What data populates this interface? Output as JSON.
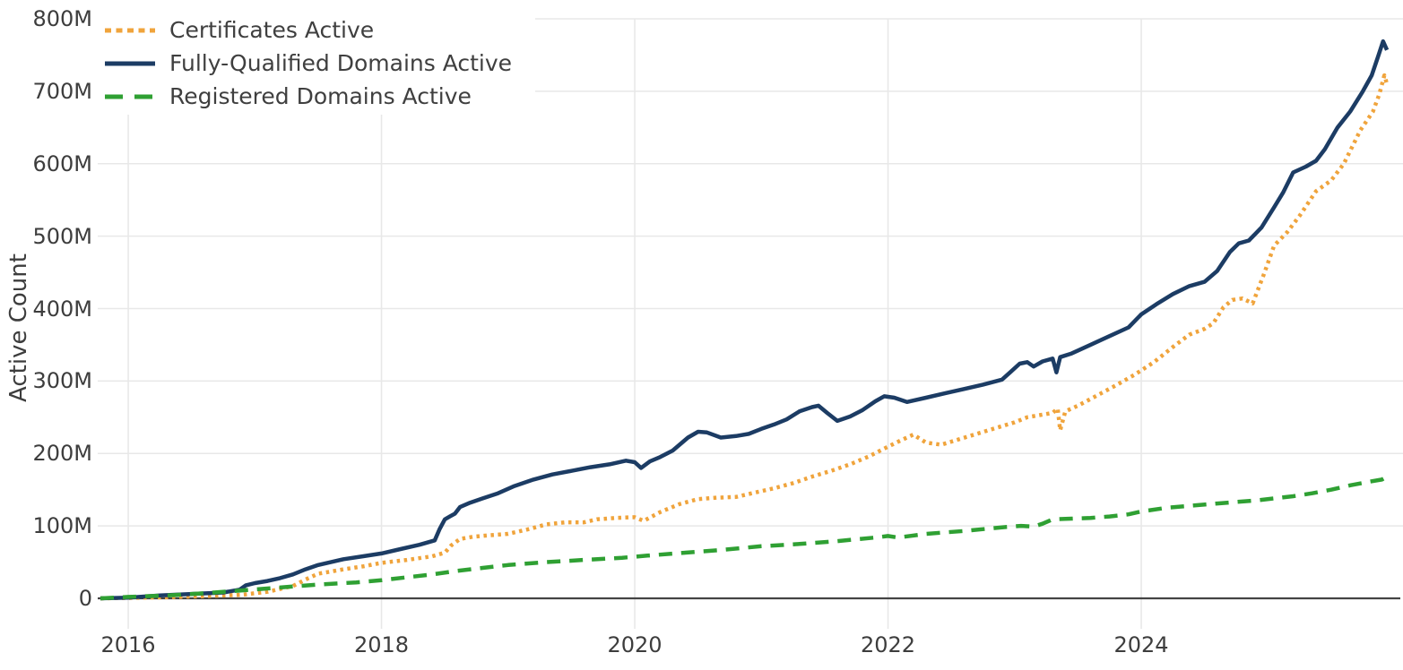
{
  "chart_data": {
    "type": "line",
    "title": "",
    "xlabel": "",
    "ylabel": "Active Count",
    "units": "millions",
    "xlim": [
      2015.759,
      2026.067
    ],
    "ylim": [
      0,
      800
    ],
    "grid": true,
    "legend_position": "top-left",
    "background_color": "#ffffff",
    "grid_color": "#e8e8e8",
    "axis_color": "#444444",
    "text_color": "#3d3d3d",
    "x_ticks": [
      {
        "v": 2016,
        "label": "2016"
      },
      {
        "v": 2018,
        "label": "2018"
      },
      {
        "v": 2020,
        "label": "2020"
      },
      {
        "v": 2022,
        "label": "2022"
      },
      {
        "v": 2024,
        "label": "2024"
      }
    ],
    "y_ticks": [
      {
        "v": 0,
        "label": "0"
      },
      {
        "v": 100,
        "label": "100M"
      },
      {
        "v": 200,
        "label": "200M"
      },
      {
        "v": 300,
        "label": "300M"
      },
      {
        "v": 400,
        "label": "400M"
      },
      {
        "v": 500,
        "label": "500M"
      },
      {
        "v": 600,
        "label": "600M"
      },
      {
        "v": 700,
        "label": "700M"
      },
      {
        "v": 800,
        "label": "800M"
      }
    ],
    "series": [
      {
        "name": "Certificates Active",
        "color": "#f0a43c",
        "dash": "dot",
        "width": 4.5,
        "points": [
          [
            2015.78,
            0
          ],
          [
            2016.0,
            0.5
          ],
          [
            2016.3,
            1.5
          ],
          [
            2016.6,
            3
          ],
          [
            2016.9,
            5
          ],
          [
            2017.0,
            7
          ],
          [
            2017.1,
            9
          ],
          [
            2017.2,
            13
          ],
          [
            2017.3,
            17
          ],
          [
            2017.4,
            26
          ],
          [
            2017.5,
            34
          ],
          [
            2017.6,
            37
          ],
          [
            2017.7,
            40
          ],
          [
            2017.85,
            44
          ],
          [
            2018.0,
            49
          ],
          [
            2018.2,
            53
          ],
          [
            2018.4,
            58
          ],
          [
            2018.5,
            63
          ],
          [
            2018.55,
            73
          ],
          [
            2018.62,
            82
          ],
          [
            2018.72,
            85
          ],
          [
            2018.85,
            87
          ],
          [
            2019.0,
            89
          ],
          [
            2019.15,
            95
          ],
          [
            2019.3,
            102
          ],
          [
            2019.45,
            105
          ],
          [
            2019.6,
            105
          ],
          [
            2019.7,
            109
          ],
          [
            2019.85,
            111
          ],
          [
            2020.0,
            112
          ],
          [
            2020.07,
            107
          ],
          [
            2020.2,
            119
          ],
          [
            2020.35,
            130
          ],
          [
            2020.5,
            137
          ],
          [
            2020.65,
            139
          ],
          [
            2020.8,
            140
          ],
          [
            2020.95,
            146
          ],
          [
            2021.1,
            152
          ],
          [
            2021.25,
            159
          ],
          [
            2021.4,
            168
          ],
          [
            2021.55,
            176
          ],
          [
            2021.7,
            185
          ],
          [
            2021.85,
            196
          ],
          [
            2021.95,
            205
          ],
          [
            2022.1,
            218
          ],
          [
            2022.2,
            226
          ],
          [
            2022.3,
            215
          ],
          [
            2022.42,
            212
          ],
          [
            2022.55,
            219
          ],
          [
            2022.7,
            227
          ],
          [
            2022.85,
            235
          ],
          [
            2023.0,
            243
          ],
          [
            2023.1,
            250
          ],
          [
            2023.2,
            253
          ],
          [
            2023.3,
            256
          ],
          [
            2023.34,
            262
          ],
          [
            2023.36,
            232
          ],
          [
            2023.4,
            258
          ],
          [
            2023.5,
            266
          ],
          [
            2023.65,
            280
          ],
          [
            2023.8,
            294
          ],
          [
            2023.95,
            309
          ],
          [
            2024.1,
            326
          ],
          [
            2024.25,
            347
          ],
          [
            2024.38,
            364
          ],
          [
            2024.5,
            372
          ],
          [
            2024.57,
            380
          ],
          [
            2024.65,
            402
          ],
          [
            2024.72,
            412
          ],
          [
            2024.8,
            414
          ],
          [
            2024.88,
            407
          ],
          [
            2024.97,
            448
          ],
          [
            2025.05,
            487
          ],
          [
            2025.15,
            505
          ],
          [
            2025.25,
            528
          ],
          [
            2025.38,
            562
          ],
          [
            2025.5,
            577
          ],
          [
            2025.6,
            600
          ],
          [
            2025.73,
            646
          ],
          [
            2025.83,
            672
          ],
          [
            2025.88,
            696
          ],
          [
            2025.92,
            722
          ],
          [
            2025.94,
            710
          ]
        ]
      },
      {
        "name": "Fully-Qualified Domains Active",
        "color": "#1c3c64",
        "dash": "solid",
        "width": 4.5,
        "points": [
          [
            2015.78,
            0
          ],
          [
            2016.0,
            1
          ],
          [
            2016.25,
            4
          ],
          [
            2016.5,
            6
          ],
          [
            2016.75,
            8
          ],
          [
            2016.88,
            12
          ],
          [
            2016.93,
            18
          ],
          [
            2017.0,
            21
          ],
          [
            2017.1,
            24
          ],
          [
            2017.2,
            28
          ],
          [
            2017.3,
            33
          ],
          [
            2017.4,
            40
          ],
          [
            2017.5,
            46
          ],
          [
            2017.6,
            50
          ],
          [
            2017.7,
            54
          ],
          [
            2017.85,
            58
          ],
          [
            2018.0,
            62
          ],
          [
            2018.15,
            68
          ],
          [
            2018.3,
            74
          ],
          [
            2018.42,
            80
          ],
          [
            2018.46,
            96
          ],
          [
            2018.5,
            109
          ],
          [
            2018.54,
            113
          ],
          [
            2018.58,
            117
          ],
          [
            2018.62,
            126
          ],
          [
            2018.7,
            132
          ],
          [
            2018.8,
            138
          ],
          [
            2018.92,
            145
          ],
          [
            2019.05,
            155
          ],
          [
            2019.2,
            164
          ],
          [
            2019.35,
            171
          ],
          [
            2019.5,
            176
          ],
          [
            2019.65,
            181
          ],
          [
            2019.8,
            185
          ],
          [
            2019.93,
            190
          ],
          [
            2020.0,
            188
          ],
          [
            2020.05,
            180
          ],
          [
            2020.12,
            189
          ],
          [
            2020.2,
            195
          ],
          [
            2020.3,
            204
          ],
          [
            2020.42,
            222
          ],
          [
            2020.5,
            230
          ],
          [
            2020.57,
            229
          ],
          [
            2020.68,
            222
          ],
          [
            2020.8,
            224
          ],
          [
            2020.9,
            227
          ],
          [
            2021.0,
            234
          ],
          [
            2021.1,
            240
          ],
          [
            2021.2,
            247
          ],
          [
            2021.3,
            258
          ],
          [
            2021.4,
            264
          ],
          [
            2021.45,
            266
          ],
          [
            2021.52,
            256
          ],
          [
            2021.6,
            245
          ],
          [
            2021.7,
            251
          ],
          [
            2021.8,
            260
          ],
          [
            2021.9,
            272
          ],
          [
            2021.97,
            279
          ],
          [
            2022.05,
            277
          ],
          [
            2022.15,
            271
          ],
          [
            2022.3,
            277
          ],
          [
            2022.45,
            283
          ],
          [
            2022.6,
            289
          ],
          [
            2022.75,
            295
          ],
          [
            2022.9,
            302
          ],
          [
            2022.97,
            313
          ],
          [
            2023.04,
            324
          ],
          [
            2023.1,
            326
          ],
          [
            2023.15,
            320
          ],
          [
            2023.22,
            327
          ],
          [
            2023.3,
            331
          ],
          [
            2023.33,
            312
          ],
          [
            2023.36,
            333
          ],
          [
            2023.45,
            338
          ],
          [
            2023.6,
            350
          ],
          [
            2023.75,
            362
          ],
          [
            2023.9,
            374
          ],
          [
            2024.0,
            392
          ],
          [
            2024.12,
            406
          ],
          [
            2024.25,
            420
          ],
          [
            2024.38,
            431
          ],
          [
            2024.5,
            437
          ],
          [
            2024.6,
            452
          ],
          [
            2024.7,
            478
          ],
          [
            2024.77,
            490
          ],
          [
            2024.85,
            494
          ],
          [
            2024.95,
            512
          ],
          [
            2025.05,
            540
          ],
          [
            2025.12,
            560
          ],
          [
            2025.2,
            588
          ],
          [
            2025.3,
            596
          ],
          [
            2025.38,
            604
          ],
          [
            2025.45,
            620
          ],
          [
            2025.55,
            650
          ],
          [
            2025.65,
            672
          ],
          [
            2025.75,
            700
          ],
          [
            2025.82,
            722
          ],
          [
            2025.87,
            748
          ],
          [
            2025.91,
            769
          ],
          [
            2025.94,
            757
          ]
        ]
      },
      {
        "name": "Registered Domains Active",
        "color": "#2fa033",
        "dash": "dash",
        "width": 4.5,
        "points": [
          [
            2015.78,
            0
          ],
          [
            2016.0,
            2
          ],
          [
            2016.3,
            4
          ],
          [
            2016.6,
            7
          ],
          [
            2016.9,
            11
          ],
          [
            2017.2,
            15
          ],
          [
            2017.5,
            19
          ],
          [
            2017.8,
            22
          ],
          [
            2018.0,
            25
          ],
          [
            2018.2,
            29
          ],
          [
            2018.4,
            33
          ],
          [
            2018.6,
            38
          ],
          [
            2018.8,
            42
          ],
          [
            2019.0,
            46
          ],
          [
            2019.3,
            50
          ],
          [
            2019.6,
            53
          ],
          [
            2019.9,
            56
          ],
          [
            2020.1,
            59
          ],
          [
            2020.4,
            63
          ],
          [
            2020.7,
            67
          ],
          [
            2021.0,
            72
          ],
          [
            2021.3,
            75
          ],
          [
            2021.6,
            79
          ],
          [
            2021.9,
            84
          ],
          [
            2022.0,
            86
          ],
          [
            2022.08,
            84
          ],
          [
            2022.3,
            89
          ],
          [
            2022.6,
            93
          ],
          [
            2022.9,
            98
          ],
          [
            2023.05,
            100
          ],
          [
            2023.15,
            99
          ],
          [
            2023.22,
            103
          ],
          [
            2023.3,
            109
          ],
          [
            2023.45,
            110
          ],
          [
            2023.6,
            111
          ],
          [
            2023.75,
            113
          ],
          [
            2023.9,
            116
          ],
          [
            2024.0,
            120
          ],
          [
            2024.2,
            125
          ],
          [
            2024.4,
            128
          ],
          [
            2024.6,
            131
          ],
          [
            2024.75,
            133
          ],
          [
            2024.9,
            135
          ],
          [
            2025.05,
            138
          ],
          [
            2025.2,
            141
          ],
          [
            2025.35,
            145
          ],
          [
            2025.5,
            150
          ],
          [
            2025.65,
            156
          ],
          [
            2025.8,
            161
          ],
          [
            2025.9,
            164
          ],
          [
            2025.94,
            168
          ]
        ]
      }
    ]
  }
}
